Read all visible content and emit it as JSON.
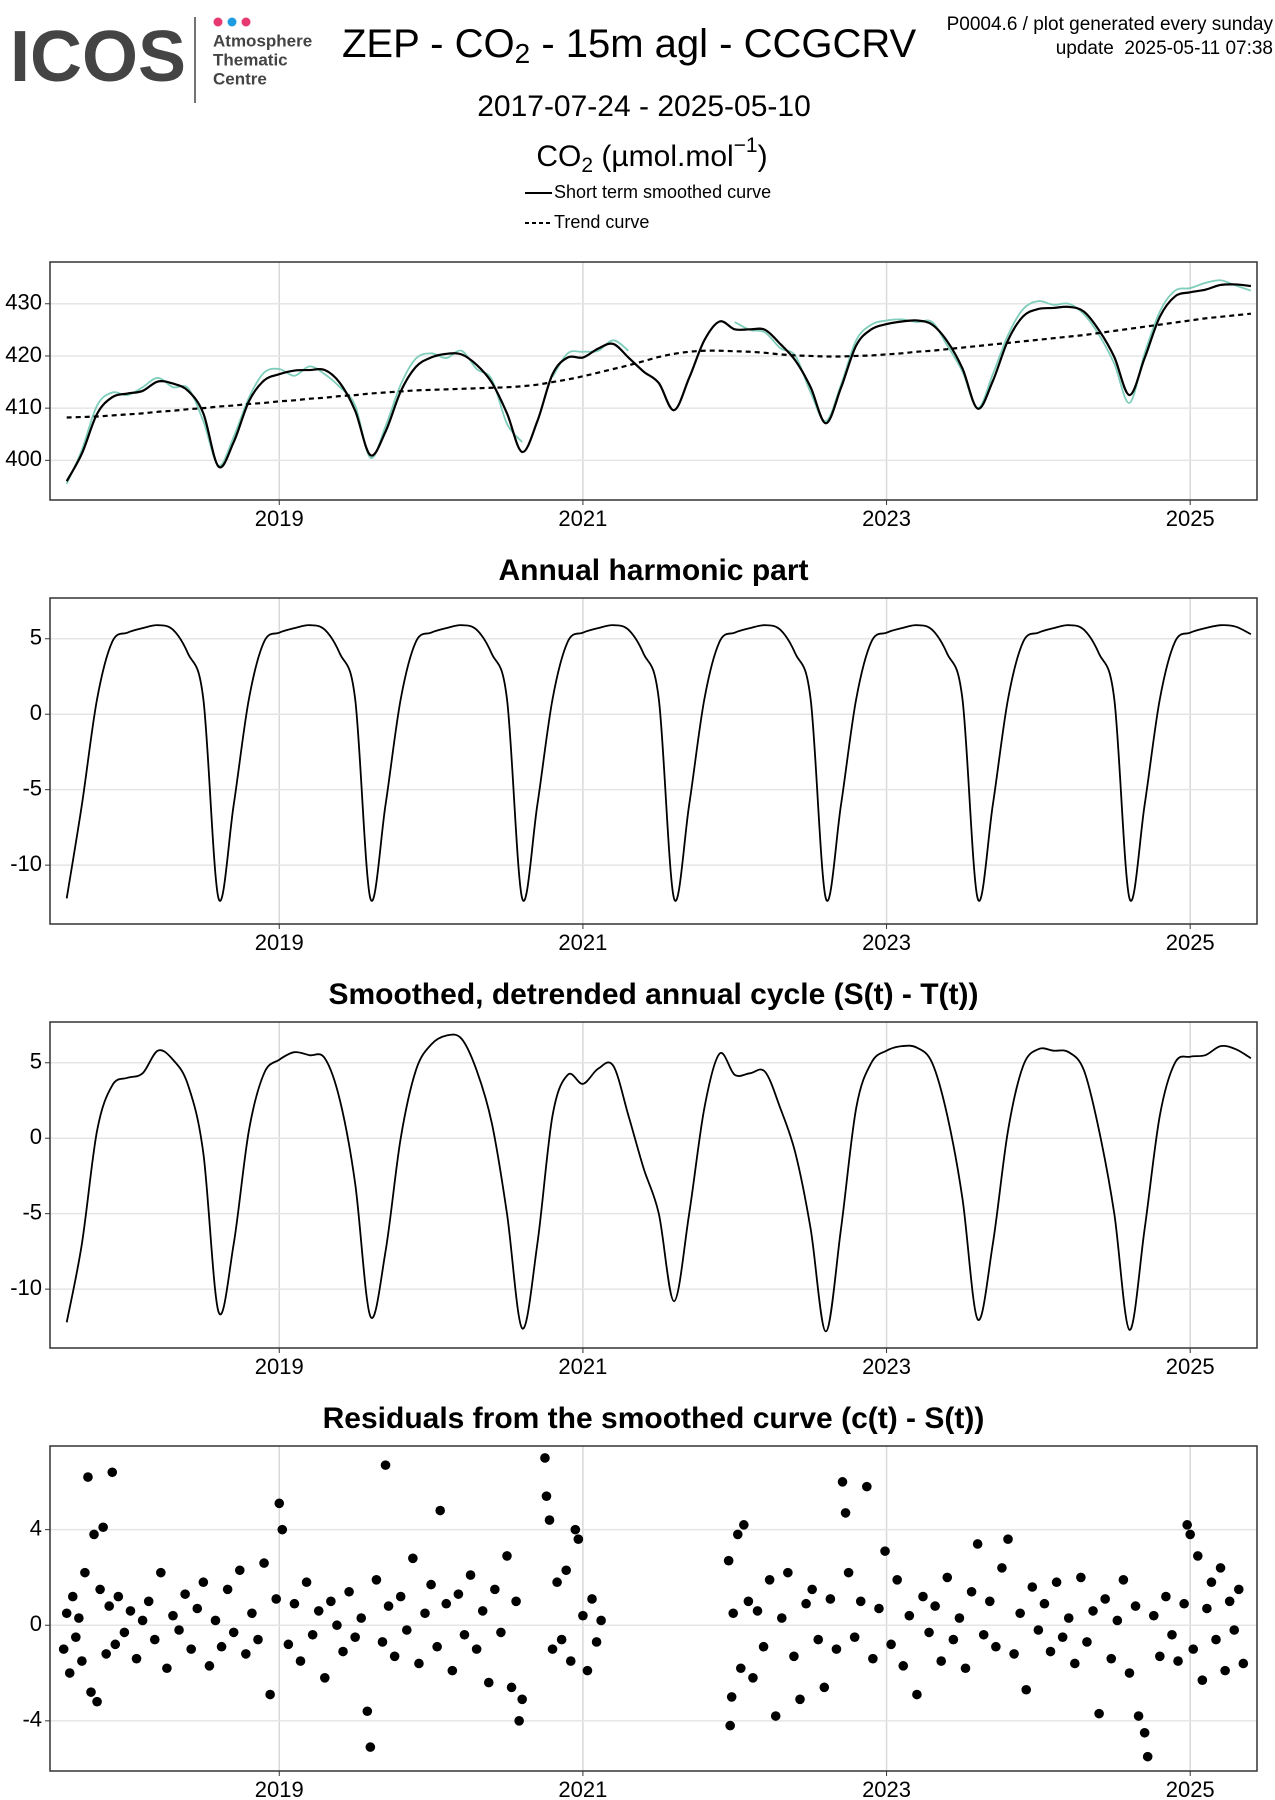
{
  "header": {
    "logo": "ICOS",
    "logo_sub": [
      "Atmosphere",
      "Thematic",
      "Centre"
    ],
    "title_parts": [
      "ZEP - CO",
      "2",
      " - 15m agl - CCGCRV"
    ],
    "info": [
      "P0004.6 / plot generated every sunday",
      "update  2025-05-11 07:38"
    ],
    "subtitle": "2017-07-24 - 2025-05-10"
  },
  "chart_data": [
    {
      "type": "line",
      "title_parts": [
        "CO",
        "2",
        " (µmol.mol",
        "−1",
        ")"
      ],
      "x": [
        2017.6,
        2017.7,
        2017.8,
        2017.9,
        2018.0,
        2018.1,
        2018.2,
        2018.3,
        2018.4,
        2018.5,
        2018.6,
        2018.7,
        2018.8,
        2018.9,
        2019.0,
        2019.1,
        2019.2,
        2019.3,
        2019.4,
        2019.5,
        2019.6,
        2019.7,
        2019.8,
        2019.9,
        2020.0,
        2020.1,
        2020.2,
        2020.3,
        2020.4,
        2020.5,
        2020.6,
        2020.7,
        2020.8,
        2020.9,
        2021.0,
        2021.1,
        2021.2,
        2021.3,
        2021.4,
        2021.5,
        2021.6,
        2021.7,
        2021.8,
        2021.9,
        2022.0,
        2022.1,
        2022.2,
        2022.3,
        2022.4,
        2022.5,
        2022.6,
        2022.7,
        2022.8,
        2022.9,
        2023.0,
        2023.1,
        2023.2,
        2023.3,
        2023.4,
        2023.5,
        2023.6,
        2023.7,
        2023.8,
        2023.9,
        2024.0,
        2024.1,
        2024.2,
        2024.3,
        2024.4,
        2024.5,
        2024.6,
        2024.7,
        2024.8,
        2024.9,
        2025.0,
        2025.1,
        2025.2,
        2025.3,
        2025.4
      ],
      "series": [
        {
          "color": "#7fcdbb",
          "values": [
            395.5,
            402.0,
            410.5,
            413.0,
            412.5,
            414.0,
            415.8,
            414.0,
            413.8,
            407.5,
            399.0,
            404.5,
            412.0,
            416.8,
            417.5,
            416.2,
            418.0,
            416.5,
            414.0,
            410.5,
            400.5,
            406.5,
            414.5,
            419.5,
            420.5,
            419.6,
            421.0,
            417.5,
            415.5,
            407.0,
            403.5,
            null,
            416.0,
            420.5,
            420.8,
            421.0,
            423.0,
            421.0,
            null,
            null,
            null,
            null,
            null,
            null,
            426.5,
            425.0,
            424.5,
            421.5,
            420.0,
            413.0,
            407.5,
            414.5,
            423.0,
            426.0,
            426.8,
            427.0,
            426.5,
            426.5,
            422.0,
            417.0,
            410.0,
            416.5,
            424.0,
            429.0,
            430.5,
            429.8,
            430.0,
            428.0,
            424.0,
            418.5,
            411.0,
            420.5,
            428.5,
            432.5,
            433.0,
            434.0,
            434.5,
            433.5,
            432.5
          ]
        },
        {
          "name": "Short term smoothed curve",
          "color": "#000000",
          "values": [
            396.0,
            401.3,
            408.9,
            412.1,
            412.8,
            413.3,
            415.1,
            414.7,
            413.3,
            409.0,
            398.8,
            403.5,
            411.3,
            415.3,
            416.5,
            417.2,
            417.3,
            417.3,
            414.8,
            409.5,
            401.0,
            405.5,
            413.2,
            417.9,
            419.7,
            420.4,
            420.3,
            418.3,
            414.9,
            409.0,
            401.6,
            407.5,
            416.5,
            419.7,
            419.7,
            421.4,
            422.3,
            419.7,
            417.0,
            414.8,
            409.6,
            415.8,
            423.0,
            426.6,
            425.1,
            425.1,
            425.0,
            422.3,
            419.1,
            414.0,
            407.1,
            413.9,
            422.0,
            425.1,
            426.1,
            426.6,
            426.8,
            426.0,
            422.8,
            417.6,
            409.9,
            415.2,
            423.0,
            427.6,
            429.0,
            429.2,
            429.4,
            428.5,
            424.9,
            419.8,
            412.5,
            419.6,
            427.5,
            431.4,
            432.2,
            432.7,
            433.6,
            433.7,
            433.4
          ]
        },
        {
          "name": "Trend curve",
          "color": "#000000",
          "dash": true,
          "values": [
            408.2,
            408.3,
            408.4,
            408.6,
            408.8,
            409.0,
            409.3,
            409.5,
            409.8,
            410.0,
            410.3,
            410.5,
            410.8,
            411.0,
            411.3,
            411.5,
            411.8,
            412.0,
            412.3,
            412.5,
            412.8,
            413.0,
            413.2,
            413.4,
            413.5,
            413.6,
            413.7,
            413.8,
            413.9,
            414.0,
            414.2,
            414.5,
            415.0,
            415.5,
            416.1,
            416.8,
            417.5,
            418.2,
            419.0,
            419.8,
            420.4,
            420.8,
            421.0,
            421.0,
            420.9,
            420.8,
            420.6,
            420.3,
            420.1,
            420.0,
            419.9,
            419.9,
            420.0,
            420.1,
            420.3,
            420.5,
            420.8,
            421.0,
            421.3,
            421.6,
            421.9,
            422.2,
            422.5,
            422.8,
            423.1,
            423.4,
            423.7,
            424.0,
            424.4,
            424.8,
            425.2,
            425.6,
            426.0,
            426.4,
            426.8,
            427.2,
            427.5,
            427.8,
            428.1
          ]
        }
      ],
      "xlim": [
        2017.49,
        2025.44
      ],
      "xticks": [
        2019,
        2021,
        2023,
        2025
      ],
      "ylim": [
        392.4,
        438
      ],
      "yticks": [
        400,
        410,
        420,
        430
      ],
      "grid": true
    },
    {
      "type": "line",
      "title": "Annual harmonic part",
      "x": [
        2017.6,
        2017.7,
        2017.8,
        2017.9,
        2018.0,
        2018.1,
        2018.2,
        2018.3,
        2018.4,
        2018.5,
        2018.6,
        2018.7,
        2018.8,
        2018.9,
        2019.0,
        2019.1,
        2019.2,
        2019.3,
        2019.4,
        2019.5,
        2019.6,
        2019.7,
        2019.8,
        2019.9,
        2020.0,
        2020.1,
        2020.2,
        2020.3,
        2020.4,
        2020.5,
        2020.6,
        2020.7,
        2020.8,
        2020.9,
        2021.0,
        2021.1,
        2021.2,
        2021.3,
        2021.4,
        2021.5,
        2021.6,
        2021.7,
        2021.8,
        2021.9,
        2022.0,
        2022.1,
        2022.2,
        2022.3,
        2022.4,
        2022.5,
        2022.6,
        2022.7,
        2022.8,
        2022.9,
        2023.0,
        2023.1,
        2023.2,
        2023.3,
        2023.4,
        2023.5,
        2023.6,
        2023.7,
        2023.8,
        2023.9,
        2024.0,
        2024.1,
        2024.2,
        2024.3,
        2024.4,
        2024.5,
        2024.6,
        2024.7,
        2024.8,
        2024.9,
        2025.0,
        2025.1,
        2025.2,
        2025.3,
        2025.4
      ],
      "series": [
        {
          "color": "#000000",
          "values": [
            -12.2,
            -6,
            1,
            4.8,
            5.4,
            5.7,
            5.9,
            5.6,
            4.0,
            1.0,
            -12.2,
            -6,
            1,
            4.8,
            5.4,
            5.7,
            5.9,
            5.6,
            4.0,
            1.0,
            -12.2,
            -6,
            1,
            4.8,
            5.4,
            5.7,
            5.9,
            5.6,
            4.0,
            1.0,
            -12.2,
            -6,
            1,
            4.8,
            5.4,
            5.7,
            5.9,
            5.6,
            4.0,
            1.0,
            -12.2,
            -6,
            1,
            4.8,
            5.4,
            5.7,
            5.9,
            5.6,
            4.0,
            1.0,
            -12.2,
            -6,
            1,
            4.8,
            5.4,
            5.7,
            5.9,
            5.6,
            4.0,
            1.0,
            -12.2,
            -6,
            1,
            4.8,
            5.4,
            5.7,
            5.9,
            5.6,
            4.0,
            1.0,
            -12.2,
            -6,
            1,
            4.8,
            5.4,
            5.7,
            5.9,
            5.8,
            5.3
          ]
        }
      ],
      "xlim": [
        2017.49,
        2025.44
      ],
      "xticks": [
        2019,
        2021,
        2023,
        2025
      ],
      "ylim": [
        -13.9,
        7.7
      ],
      "yticks": [
        -10,
        -5,
        0,
        5
      ],
      "grid": true
    },
    {
      "type": "line",
      "title": "Smoothed, detrended annual cycle (S(t) - T(t))",
      "x": [
        2017.6,
        2017.7,
        2017.8,
        2017.9,
        2018.0,
        2018.1,
        2018.2,
        2018.3,
        2018.4,
        2018.5,
        2018.6,
        2018.7,
        2018.8,
        2018.9,
        2019.0,
        2019.1,
        2019.2,
        2019.3,
        2019.4,
        2019.5,
        2019.6,
        2019.7,
        2019.8,
        2019.9,
        2020.0,
        2020.1,
        2020.2,
        2020.3,
        2020.4,
        2020.5,
        2020.6,
        2020.7,
        2020.8,
        2020.9,
        2021.0,
        2021.1,
        2021.2,
        2021.3,
        2021.4,
        2021.5,
        2021.6,
        2021.7,
        2021.8,
        2021.9,
        2022.0,
        2022.1,
        2022.2,
        2022.3,
        2022.4,
        2022.5,
        2022.6,
        2022.7,
        2022.8,
        2022.9,
        2023.0,
        2023.1,
        2023.2,
        2023.3,
        2023.4,
        2023.5,
        2023.6,
        2023.7,
        2023.8,
        2023.9,
        2024.0,
        2024.1,
        2024.2,
        2024.3,
        2024.4,
        2024.5,
        2024.6,
        2024.7,
        2024.8,
        2024.9,
        2025.0,
        2025.1,
        2025.2,
        2025.3,
        2025.4
      ],
      "series": [
        {
          "color": "#000000",
          "values": [
            -12.2,
            -7,
            0.5,
            3.5,
            4.0,
            4.3,
            5.8,
            5.2,
            3.5,
            -1,
            -11.5,
            -7,
            0.5,
            4.3,
            5.2,
            5.7,
            5.5,
            5.3,
            2.5,
            -3,
            -11.8,
            -7.5,
            0,
            4.5,
            6.2,
            6.8,
            6.6,
            4.5,
            1,
            -5,
            -12.6,
            -7,
            1.5,
            4.2,
            3.6,
            4.6,
            4.8,
            1.5,
            -2,
            -5,
            -10.8,
            -5,
            2,
            5.6,
            4.2,
            4.3,
            4.4,
            2.0,
            -1,
            -6,
            -12.8,
            -6,
            2,
            5.0,
            5.8,
            6.1,
            6.0,
            5,
            1.5,
            -4,
            -12,
            -7,
            0.5,
            4.8,
            5.9,
            5.8,
            5.7,
            4.5,
            0.5,
            -5,
            -12.7,
            -6,
            1.5,
            5.0,
            5.4,
            5.5,
            6.1,
            5.9,
            5.3
          ]
        }
      ],
      "xlim": [
        2017.49,
        2025.44
      ],
      "xticks": [
        2019,
        2021,
        2023,
        2025
      ],
      "ylim": [
        -13.9,
        7.7
      ],
      "yticks": [
        -10,
        -5,
        0,
        5
      ],
      "grid": true
    },
    {
      "type": "scatter",
      "title": "Residuals from the smoothed curve (c(t) - S(t))",
      "color": "#000000",
      "x": [
        2017.58,
        2017.6,
        2017.62,
        2017.64,
        2017.66,
        2017.68,
        2017.7,
        2017.72,
        2017.74,
        2017.76,
        2017.78,
        2017.8,
        2017.82,
        2017.84,
        2017.86,
        2017.88,
        2017.9,
        2017.92,
        2017.94,
        2017.98,
        2018.02,
        2018.06,
        2018.1,
        2018.14,
        2018.18,
        2018.22,
        2018.26,
        2018.3,
        2018.34,
        2018.38,
        2018.42,
        2018.46,
        2018.5,
        2018.54,
        2018.58,
        2018.62,
        2018.66,
        2018.7,
        2018.74,
        2018.78,
        2018.82,
        2018.86,
        2018.9,
        2018.94,
        2018.98,
        2019.0,
        2019.02,
        2019.06,
        2019.1,
        2019.14,
        2019.18,
        2019.22,
        2019.26,
        2019.3,
        2019.34,
        2019.38,
        2019.42,
        2019.46,
        2019.5,
        2019.54,
        2019.58,
        2019.6,
        2019.64,
        2019.68,
        2019.7,
        2019.72,
        2019.76,
        2019.8,
        2019.84,
        2019.88,
        2019.92,
        2019.96,
        2020.0,
        2020.04,
        2020.06,
        2020.1,
        2020.14,
        2020.18,
        2020.22,
        2020.26,
        2020.3,
        2020.34,
        2020.38,
        2020.42,
        2020.46,
        2020.5,
        2020.53,
        2020.56,
        2020.58,
        2020.6,
        2020.75,
        2020.76,
        2020.78,
        2020.8,
        2020.83,
        2020.86,
        2020.89,
        2020.92,
        2020.95,
        2020.97,
        2021.0,
        2021.03,
        2021.06,
        2021.09,
        2021.12,
        2021.96,
        2021.97,
        2021.98,
        2021.99,
        2022.02,
        2022.04,
        2022.06,
        2022.09,
        2022.12,
        2022.15,
        2022.19,
        2022.23,
        2022.27,
        2022.31,
        2022.35,
        2022.39,
        2022.43,
        2022.47,
        2022.51,
        2022.55,
        2022.59,
        2022.63,
        2022.67,
        2022.71,
        2022.73,
        2022.75,
        2022.79,
        2022.83,
        2022.87,
        2022.91,
        2022.95,
        2022.99,
        2023.03,
        2023.07,
        2023.11,
        2023.15,
        2023.2,
        2023.24,
        2023.28,
        2023.32,
        2023.36,
        2023.4,
        2023.44,
        2023.48,
        2023.52,
        2023.56,
        2023.6,
        2023.64,
        2023.68,
        2023.72,
        2023.76,
        2023.8,
        2023.84,
        2023.88,
        2023.92,
        2023.96,
        2024.0,
        2024.04,
        2024.08,
        2024.12,
        2024.16,
        2024.2,
        2024.24,
        2024.28,
        2024.32,
        2024.36,
        2024.4,
        2024.44,
        2024.48,
        2024.52,
        2024.56,
        2024.6,
        2024.64,
        2024.66,
        2024.7,
        2024.72,
        2024.76,
        2024.8,
        2024.84,
        2024.88,
        2024.92,
        2024.96,
        2024.98,
        2025.0,
        2025.02,
        2025.05,
        2025.08,
        2025.11,
        2025.14,
        2025.17,
        2025.2,
        2025.23,
        2025.26,
        2025.29,
        2025.32,
        2025.35
      ],
      "values": [
        -1.0,
        0.5,
        -2.0,
        1.2,
        -0.5,
        0.3,
        -1.5,
        2.2,
        6.2,
        -2.8,
        3.8,
        -3.2,
        1.5,
        4.1,
        -1.2,
        0.8,
        6.4,
        -0.8,
        1.2,
        -0.3,
        0.6,
        -1.4,
        0.2,
        1.0,
        -0.6,
        2.2,
        -1.8,
        0.4,
        -0.2,
        1.3,
        -1.0,
        0.7,
        1.8,
        -1.7,
        0.2,
        -0.9,
        1.5,
        -0.3,
        2.3,
        -1.2,
        0.5,
        -0.6,
        2.6,
        -2.9,
        1.1,
        5.1,
        4.0,
        -0.8,
        0.9,
        -1.5,
        1.8,
        -0.4,
        0.6,
        -2.2,
        1.0,
        0.0,
        -1.1,
        1.4,
        -0.5,
        0.3,
        -3.6,
        -5.1,
        1.9,
        -0.7,
        6.7,
        0.8,
        -1.3,
        1.2,
        -0.2,
        2.8,
        -1.6,
        0.5,
        1.7,
        -0.9,
        4.8,
        0.9,
        -1.9,
        1.3,
        -0.4,
        2.1,
        -1.0,
        0.6,
        -2.4,
        1.5,
        -0.3,
        2.9,
        -2.6,
        1.0,
        -4.0,
        -3.1,
        7.0,
        5.4,
        4.4,
        -1.0,
        1.8,
        -0.6,
        2.3,
        -1.5,
        4.0,
        3.6,
        0.4,
        -1.9,
        1.1,
        -0.7,
        0.2,
        2.7,
        -4.2,
        -3.0,
        0.5,
        3.8,
        -1.8,
        4.2,
        1.0,
        -2.2,
        0.6,
        -0.9,
        1.9,
        -3.8,
        0.3,
        2.2,
        -1.3,
        -3.1,
        0.9,
        1.5,
        -0.6,
        -2.6,
        1.1,
        -1.0,
        6.0,
        4.7,
        2.2,
        -0.5,
        1.0,
        5.8,
        -1.4,
        0.7,
        3.1,
        -0.8,
        1.9,
        -1.7,
        0.4,
        -2.9,
        1.2,
        -0.3,
        0.8,
        -1.5,
        2.0,
        -0.6,
        0.3,
        -1.8,
        1.4,
        3.4,
        -0.4,
        1.0,
        -0.9,
        2.4,
        3.6,
        -1.2,
        0.5,
        -2.7,
        1.6,
        -0.2,
        0.9,
        -1.1,
        1.8,
        -0.5,
        0.3,
        -1.6,
        2.0,
        -0.7,
        0.6,
        -3.7,
        1.1,
        -1.4,
        0.2,
        1.9,
        -2.0,
        0.8,
        -3.8,
        -4.5,
        -5.5,
        0.4,
        -1.3,
        1.2,
        -0.4,
        -1.5,
        0.9,
        4.2,
        3.8,
        -1.0,
        2.9,
        -2.3,
        0.7,
        1.8,
        -0.6,
        2.4,
        -1.9,
        1.0,
        -0.2,
        1.5,
        -1.6
      ],
      "xlim": [
        2017.49,
        2025.44
      ],
      "xticks": [
        2019,
        2021,
        2023,
        2025
      ],
      "ylim": [
        -6.1,
        7.5
      ],
      "yticks": [
        -4,
        0,
        4
      ],
      "grid": true
    }
  ]
}
